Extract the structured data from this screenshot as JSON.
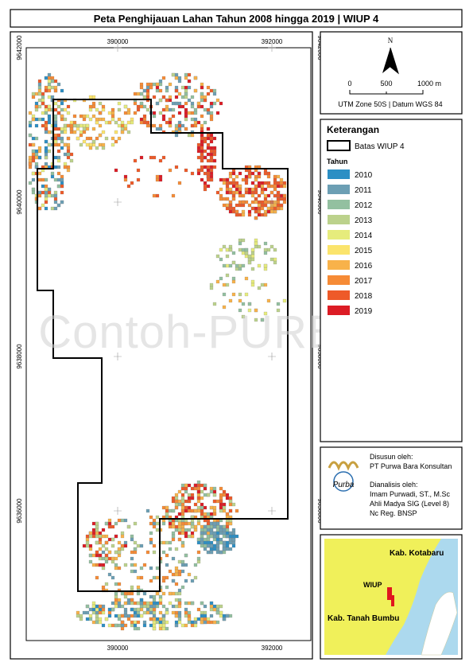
{
  "title": "Peta Penghijauan Lahan Tahun 2008 hingga 2019 | WIUP 4",
  "map": {
    "x_labels": [
      390000,
      392000
    ],
    "y_labels": [
      9642000,
      9640000,
      9638000,
      9636000
    ],
    "watermark": "Contoh-PURBAKA"
  },
  "north_scale": {
    "north": "N",
    "scale_labels": [
      "0",
      "500",
      "1000 m"
    ],
    "projection": "UTM Zone 50S | Datum WGS 84"
  },
  "legend": {
    "title": "Keterangan",
    "boundary": "Batas WIUP 4",
    "years_title": "Tahun",
    "items": [
      {
        "label": "2010",
        "color": "#2c8fc4"
      },
      {
        "label": "2011",
        "color": "#6c9fb4"
      },
      {
        "label": "2012",
        "color": "#93c0a0"
      },
      {
        "label": "2013",
        "color": "#bcd28c"
      },
      {
        "label": "2014",
        "color": "#e6ec7c"
      },
      {
        "label": "2015",
        "color": "#fbe46c"
      },
      {
        "label": "2016",
        "color": "#f8b24a"
      },
      {
        "label": "2017",
        "color": "#f68b36"
      },
      {
        "label": "2018",
        "color": "#ee5a29"
      },
      {
        "label": "2019",
        "color": "#dc1c25"
      }
    ]
  },
  "credits": {
    "logo": "Purba",
    "prepared_label": "Disusun oleh:",
    "prepared_by": "PT Purwa Bara Konsultan",
    "analyzed_label": "Dianalisis oleh:",
    "analyst": "Imam Purwadi, ST., M.Sc",
    "analyst_role": "Ahli Madya SIG (Level 8)",
    "analyst_reg": "Nc Reg. BNSP"
  },
  "inset": {
    "labels": [
      "Kab. Kotabaru",
      "WIUP",
      "Kab. Tanah Bumbu"
    ]
  }
}
